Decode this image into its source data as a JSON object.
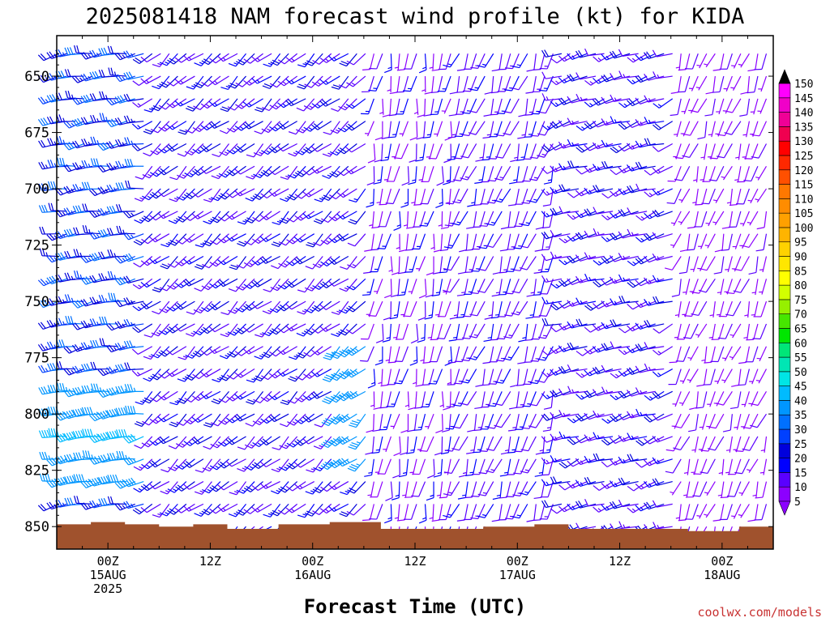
{
  "chart_data": {
    "type": "wind_barb_profile",
    "title": "2025081418 NAM forecast wind profile (kt) for KIDA",
    "xlabel": "Forecast Time (UTC)",
    "ylabel": "",
    "units": "kt",
    "y_axis": {
      "reversed": true,
      "range": [
        632,
        860
      ],
      "ticks": [
        650,
        675,
        700,
        725,
        750,
        775,
        800,
        825,
        850
      ]
    },
    "x_axis": {
      "range_hours_from_run": [
        0,
        84
      ],
      "ticks": [
        {
          "hour": 6,
          "line1": "00Z",
          "line2": "15AUG",
          "line3": "2025"
        },
        {
          "hour": 18,
          "line1": "12Z",
          "line2": "",
          "line3": ""
        },
        {
          "hour": 30,
          "line1": "00Z",
          "line2": "16AUG",
          "line3": ""
        },
        {
          "hour": 42,
          "line1": "12Z",
          "line2": "",
          "line3": ""
        },
        {
          "hour": 54,
          "line1": "00Z",
          "line2": "17AUG",
          "line3": ""
        },
        {
          "hour": 66,
          "line1": "12Z",
          "line2": "",
          "line3": ""
        },
        {
          "hour": 78,
          "line1": "00Z",
          "line2": "18AUG",
          "line3": ""
        }
      ]
    },
    "barb_levels_hpa": [
      640,
      650,
      660,
      670,
      680,
      690,
      700,
      710,
      720,
      730,
      740,
      750,
      760,
      770,
      780,
      790,
      800,
      810,
      820,
      830,
      840,
      850
    ],
    "wind_regimes": [
      {
        "hours": [
          0,
          10
        ],
        "direction_deg": 260,
        "speed_kt": [
          20,
          30
        ],
        "note": "westerly, strongest 790-830 hPa"
      },
      {
        "hours": [
          10,
          36
        ],
        "direction_deg": 230,
        "speed_kt": [
          10,
          20
        ],
        "note": "southwesterly"
      },
      {
        "hours": [
          36,
          46
        ],
        "direction_deg": 190,
        "speed_kt": [
          5,
          15
        ],
        "note": "weak southerly"
      },
      {
        "hours": [
          46,
          58
        ],
        "direction_deg": 200,
        "speed_kt": [
          10,
          15
        ]
      },
      {
        "hours": [
          58,
          72
        ],
        "direction_deg": 250,
        "speed_kt": [
          10,
          20
        ]
      },
      {
        "hours": [
          72,
          84
        ],
        "direction_deg": 200,
        "speed_kt": [
          5,
          10
        ]
      }
    ],
    "terrain": {
      "color": "#a0522d",
      "surface_pressure_hpa": [
        {
          "hour": 0,
          "p": 849
        },
        {
          "hour": 4,
          "p": 848
        },
        {
          "hour": 8,
          "p": 849
        },
        {
          "hour": 12,
          "p": 850
        },
        {
          "hour": 16,
          "p": 849
        },
        {
          "hour": 20,
          "p": 851
        },
        {
          "hour": 26,
          "p": 849
        },
        {
          "hour": 32,
          "p": 848
        },
        {
          "hour": 38,
          "p": 851
        },
        {
          "hour": 44,
          "p": 851
        },
        {
          "hour": 50,
          "p": 850
        },
        {
          "hour": 56,
          "p": 849
        },
        {
          "hour": 60,
          "p": 851
        },
        {
          "hour": 68,
          "p": 851
        },
        {
          "hour": 74,
          "p": 852
        },
        {
          "hour": 80,
          "p": 850
        },
        {
          "hour": 84,
          "p": 850
        }
      ]
    },
    "colorbar": {
      "levels": [
        5,
        10,
        15,
        20,
        25,
        30,
        35,
        40,
        45,
        50,
        55,
        60,
        65,
        70,
        75,
        80,
        85,
        90,
        95,
        100,
        105,
        110,
        115,
        120,
        125,
        130,
        135,
        140,
        145,
        150
      ],
      "colors": [
        "#8c00ff",
        "#5a00ff",
        "#0000ff",
        "#0000dc",
        "#0040ff",
        "#0070ff",
        "#0096ff",
        "#00bbff",
        "#00e5e5",
        "#00e6b4",
        "#00e678",
        "#00e600",
        "#46e600",
        "#96f000",
        "#d2ff00",
        "#ffff00",
        "#ffe600",
        "#ffd200",
        "#ffb400",
        "#ffa000",
        "#ff8c00",
        "#ff7800",
        "#ff5000",
        "#ff2800",
        "#ff0000",
        "#f00050",
        "#f00096",
        "#f000c8",
        "#ff00ff"
      ],
      "under_color": "#8c00ff",
      "over_color": "#000000"
    },
    "grid": false,
    "legend": "right"
  },
  "credit": "coolwx.com/models"
}
